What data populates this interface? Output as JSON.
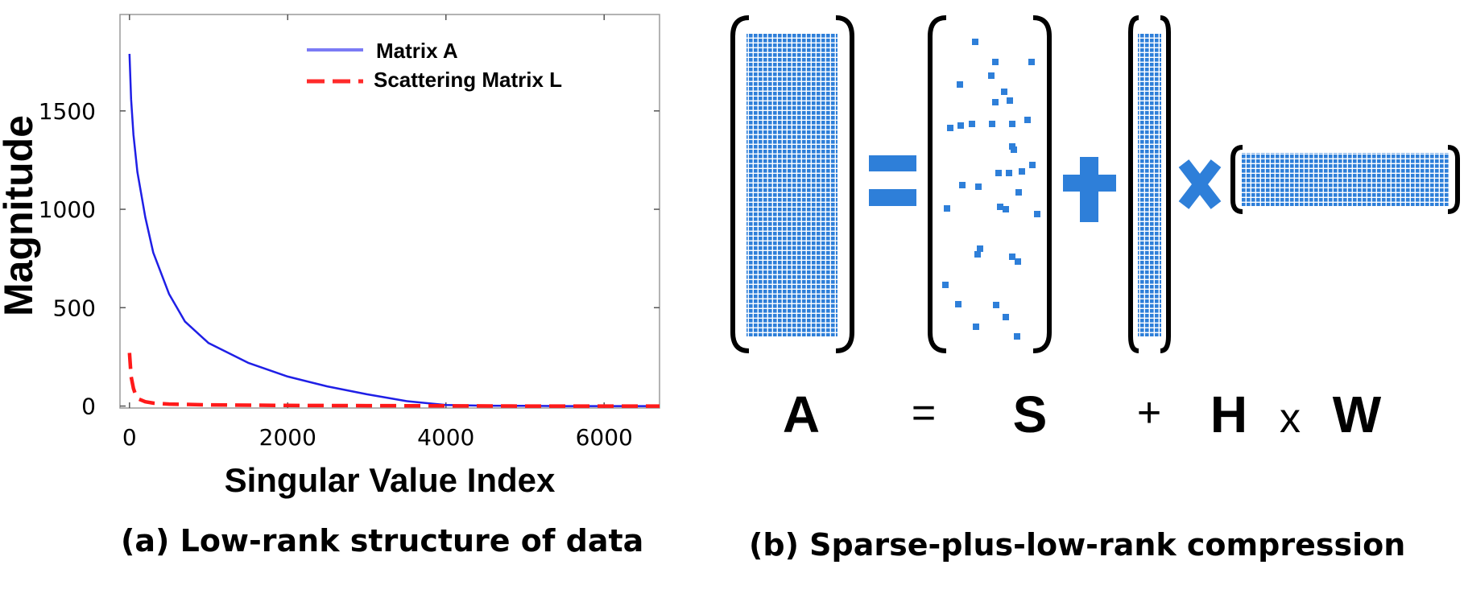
{
  "chart_data": {
    "type": "line",
    "xlabel": "Singular Value Index",
    "ylabel": "Magnitude",
    "xlim": [
      -120,
      6700
    ],
    "ylim": [
      -10,
      1990
    ],
    "x_ticks": [
      "0",
      "2000",
      "4000",
      "6000"
    ],
    "y_ticks": [
      "0",
      "500",
      "1000",
      "1500"
    ],
    "legend_position": "top-right",
    "grid": false,
    "series": [
      {
        "name": "Matrix A",
        "color": "#1f1fe6",
        "style": "solid",
        "x": [
          0,
          20,
          50,
          100,
          200,
          300,
          500,
          700,
          1000,
          1500,
          2000,
          2500,
          3000,
          3500,
          4000,
          4500,
          5000,
          5500,
          6000,
          6500,
          6700
        ],
        "y": [
          1790,
          1560,
          1380,
          1190,
          960,
          780,
          570,
          430,
          320,
          220,
          150,
          100,
          60,
          25,
          5,
          2,
          1,
          0,
          0,
          0,
          0
        ]
      },
      {
        "name": "Scattering Matrix L",
        "color": "#ff1a1a",
        "style": "dashed",
        "x": [
          0,
          20,
          50,
          80,
          120,
          200,
          300,
          500,
          1000,
          2000,
          3000,
          4000,
          5000,
          6000,
          6700
        ],
        "y": [
          270,
          150,
          90,
          55,
          35,
          22,
          15,
          10,
          6,
          3,
          2,
          1,
          0,
          0,
          0
        ]
      }
    ]
  },
  "diagram": {
    "labels": {
      "A": "A",
      "eq": "=",
      "S": "S",
      "plus": "+",
      "H": "H",
      "times": "x",
      "W": "W"
    },
    "matrix_color": "#2e7fd9"
  },
  "captions": {
    "a": "(a) Low-rank structure of data",
    "b": "(b) Sparse-plus-low-rank compression"
  }
}
